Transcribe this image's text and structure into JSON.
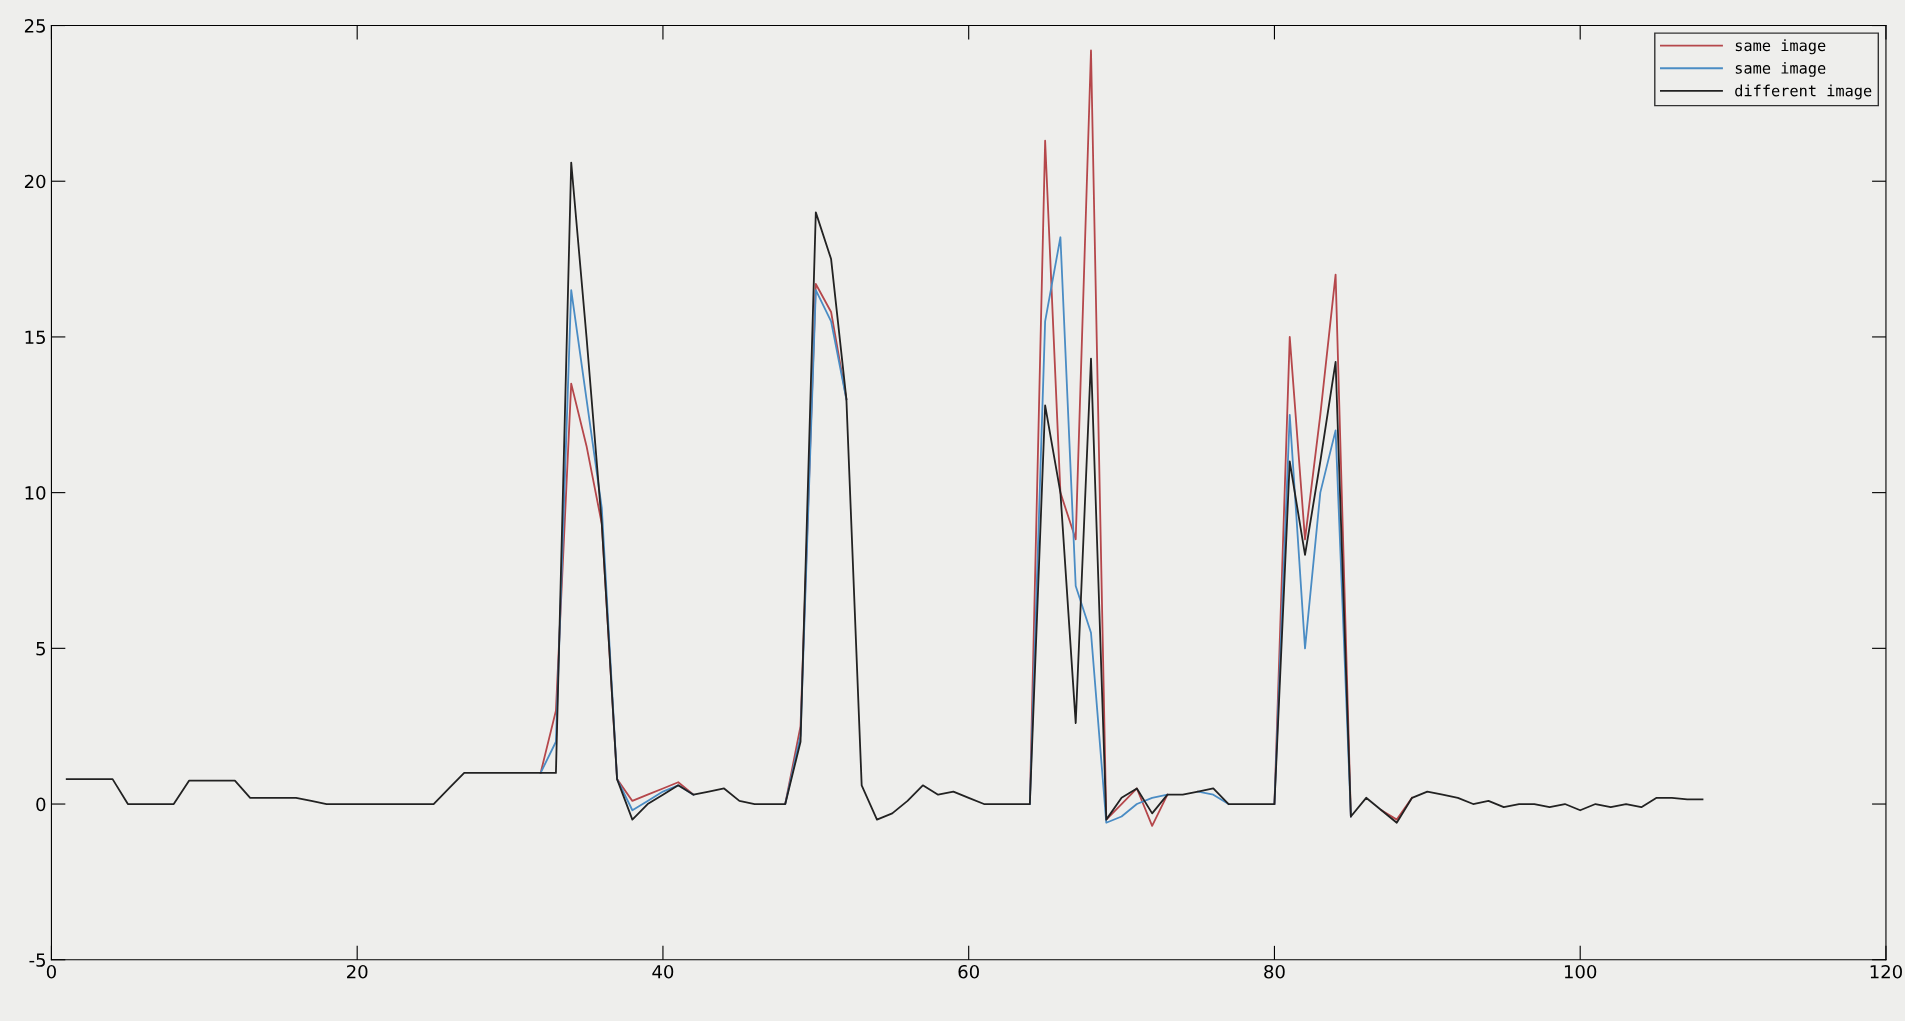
{
  "chart_data": {
    "type": "line",
    "x": [
      1,
      2,
      3,
      4,
      5,
      6,
      7,
      8,
      9,
      10,
      11,
      12,
      13,
      14,
      15,
      16,
      17,
      18,
      19,
      20,
      21,
      22,
      23,
      24,
      25,
      26,
      27,
      28,
      29,
      30,
      31,
      32,
      33,
      34,
      35,
      36,
      37,
      38,
      39,
      40,
      41,
      42,
      43,
      44,
      45,
      46,
      47,
      48,
      49,
      50,
      51,
      52,
      53,
      54,
      55,
      56,
      57,
      58,
      59,
      60,
      61,
      62,
      63,
      64,
      65,
      66,
      67,
      68,
      69,
      70,
      71,
      72,
      73,
      74,
      75,
      76,
      77,
      78,
      79,
      80,
      81,
      82,
      83,
      84,
      85,
      86,
      87,
      88,
      89,
      90,
      91,
      92,
      93,
      94,
      95,
      96,
      97,
      98,
      99,
      100,
      101,
      102,
      103,
      104,
      105,
      106,
      107,
      108
    ],
    "series": [
      {
        "name": "same image",
        "color": "#b5474b",
        "values": [
          null,
          null,
          null,
          null,
          null,
          null,
          null,
          null,
          null,
          null,
          null,
          null,
          null,
          null,
          null,
          null,
          null,
          null,
          null,
          null,
          null,
          null,
          null,
          null,
          null,
          null,
          null,
          null,
          null,
          null,
          null,
          1,
          3,
          13.5,
          11.5,
          9,
          0.8,
          0.1,
          0.3,
          0.5,
          0.7,
          0.3,
          null,
          null,
          null,
          null,
          null,
          0,
          2.5,
          16.7,
          15.8,
          13,
          null,
          null,
          null,
          null,
          null,
          null,
          null,
          null,
          null,
          null,
          null,
          0,
          21.3,
          10,
          8.5,
          24.2,
          -0.5,
          0,
          0.5,
          -0.7,
          0.3,
          null,
          null,
          null,
          null,
          null,
          null,
          0,
          15,
          8.5,
          12.5,
          17,
          -0.4,
          null,
          -0.2,
          -0.5,
          0.2,
          null,
          null,
          null,
          null,
          null,
          null,
          null,
          null,
          null,
          null,
          null,
          null,
          null,
          null,
          null,
          null,
          null,
          null,
          null
        ]
      },
      {
        "name": "same image",
        "color": "#4a8cc4",
        "values": [
          null,
          null,
          null,
          null,
          null,
          null,
          null,
          null,
          null,
          null,
          null,
          null,
          null,
          null,
          null,
          null,
          null,
          null,
          null,
          null,
          null,
          null,
          null,
          null,
          null,
          null,
          null,
          null,
          null,
          null,
          null,
          1,
          2,
          16.5,
          13,
          9.5,
          0.8,
          -0.2,
          0.1,
          0.4,
          0.6,
          0.3,
          null,
          null,
          null,
          null,
          null,
          0,
          2.2,
          16.5,
          15.5,
          13,
          null,
          null,
          null,
          null,
          null,
          null,
          null,
          null,
          null,
          null,
          null,
          0,
          15.5,
          18.2,
          7,
          5.5,
          -0.6,
          -0.4,
          0,
          0.2,
          0.3,
          null,
          0.4,
          0.3,
          0,
          null,
          null,
          0,
          12.5,
          5,
          10,
          12,
          -0.4,
          null,
          null,
          null,
          null,
          null,
          null,
          null,
          null,
          null,
          null,
          null,
          null,
          null,
          null,
          null,
          null,
          null,
          null,
          null,
          null,
          null,
          null,
          null
        ]
      },
      {
        "name": "different image",
        "color": "#222222",
        "values": [
          0.8,
          0.8,
          0.8,
          0.8,
          0,
          0,
          0,
          0,
          0.75,
          0.75,
          0.75,
          0.75,
          0.2,
          0.2,
          0.2,
          0.2,
          0.1,
          0,
          0,
          0,
          0,
          0,
          0,
          0,
          0,
          0.5,
          1,
          1,
          1,
          1,
          1,
          1,
          1,
          20.6,
          15,
          9,
          0.8,
          -0.5,
          0,
          0.3,
          0.6,
          0.3,
          0.4,
          0.5,
          0.1,
          0,
          0,
          0,
          2,
          19,
          17.5,
          13,
          0.6,
          -0.5,
          -0.3,
          0.1,
          0.6,
          0.3,
          0.4,
          0.2,
          0,
          0,
          0,
          0,
          12.8,
          10,
          2.6,
          14.3,
          -0.5,
          0.2,
          0.5,
          -0.3,
          0.3,
          0.3,
          0.4,
          0.5,
          0,
          0,
          0,
          0,
          11,
          8,
          11,
          14.2,
          -0.4,
          0.2,
          -0.2,
          -0.6,
          0.2,
          0.4,
          0.3,
          0.2,
          0,
          0.1,
          -0.1,
          0,
          0,
          -0.1,
          0,
          -0.2,
          0,
          -0.1,
          0,
          -0.1,
          0.2,
          0.2,
          0.15,
          0.15
        ]
      }
    ],
    "xlim": [
      0,
      120
    ],
    "xticks": [
      0,
      20,
      40,
      60,
      80,
      100,
      120
    ],
    "ylim": [
      -5,
      25
    ],
    "yticks": [
      -5,
      0,
      5,
      10,
      15,
      20,
      25
    ],
    "grid": false,
    "legend": "top right",
    "marker": "none",
    "line_style": "solid"
  }
}
